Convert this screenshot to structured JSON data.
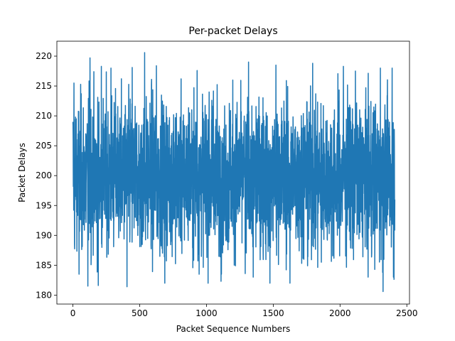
{
  "chart_data": {
    "type": "line",
    "title": "Per-packet Delays",
    "xlabel": "Packet Sequence Numbers",
    "ylabel": "Packet Delays",
    "xlim": [
      -120,
      2520
    ],
    "ylim": [
      178.5,
      222.5
    ],
    "xticks": [
      0,
      500,
      1000,
      1500,
      2000,
      2500
    ],
    "yticks": [
      180,
      185,
      190,
      195,
      200,
      205,
      210,
      215,
      220
    ],
    "grid": false,
    "legend": "none",
    "series": [
      {
        "color": "#1f77b4",
        "x_start": 0,
        "x_end": 2410,
        "n_points": 2411,
        "mean": 200,
        "min": 180.6,
        "max": 220.6,
        "peaks": [
          {
            "x": 0,
            "y": 209.0
          },
          {
            "x": 8,
            "y": 215.5
          },
          {
            "x": 12,
            "y": 188.5
          },
          {
            "x": 20,
            "y": 209.8
          },
          {
            "x": 46,
            "y": 183.5
          },
          {
            "x": 112,
            "y": 181.5
          },
          {
            "x": 128,
            "y": 219.7
          },
          {
            "x": 190,
            "y": 181.6
          },
          {
            "x": 213,
            "y": 218.3
          },
          {
            "x": 285,
            "y": 218.0
          },
          {
            "x": 405,
            "y": 181.4
          },
          {
            "x": 444,
            "y": 218.1
          },
          {
            "x": 537,
            "y": 220.6
          },
          {
            "x": 625,
            "y": 218.4
          },
          {
            "x": 688,
            "y": 182.0
          },
          {
            "x": 930,
            "y": 217.6
          },
          {
            "x": 945,
            "y": 183.5
          },
          {
            "x": 1112,
            "y": 183.5
          },
          {
            "x": 1290,
            "y": 183.6
          },
          {
            "x": 1315,
            "y": 219.0
          },
          {
            "x": 1350,
            "y": 183.0
          },
          {
            "x": 1475,
            "y": 182.0
          },
          {
            "x": 1520,
            "y": 218.5
          },
          {
            "x": 1625,
            "y": 182.0
          },
          {
            "x": 1795,
            "y": 218.8
          },
          {
            "x": 1860,
            "y": 185.5
          },
          {
            "x": 2025,
            "y": 218.3
          },
          {
            "x": 2115,
            "y": 217.5
          },
          {
            "x": 2210,
            "y": 183.0
          },
          {
            "x": 2302,
            "y": 218.0
          },
          {
            "x": 2322,
            "y": 180.6
          },
          {
            "x": 2390,
            "y": 218.0
          },
          {
            "x": 2400,
            "y": 183.0
          },
          {
            "x": 2410,
            "y": 196.0
          }
        ]
      }
    ]
  }
}
